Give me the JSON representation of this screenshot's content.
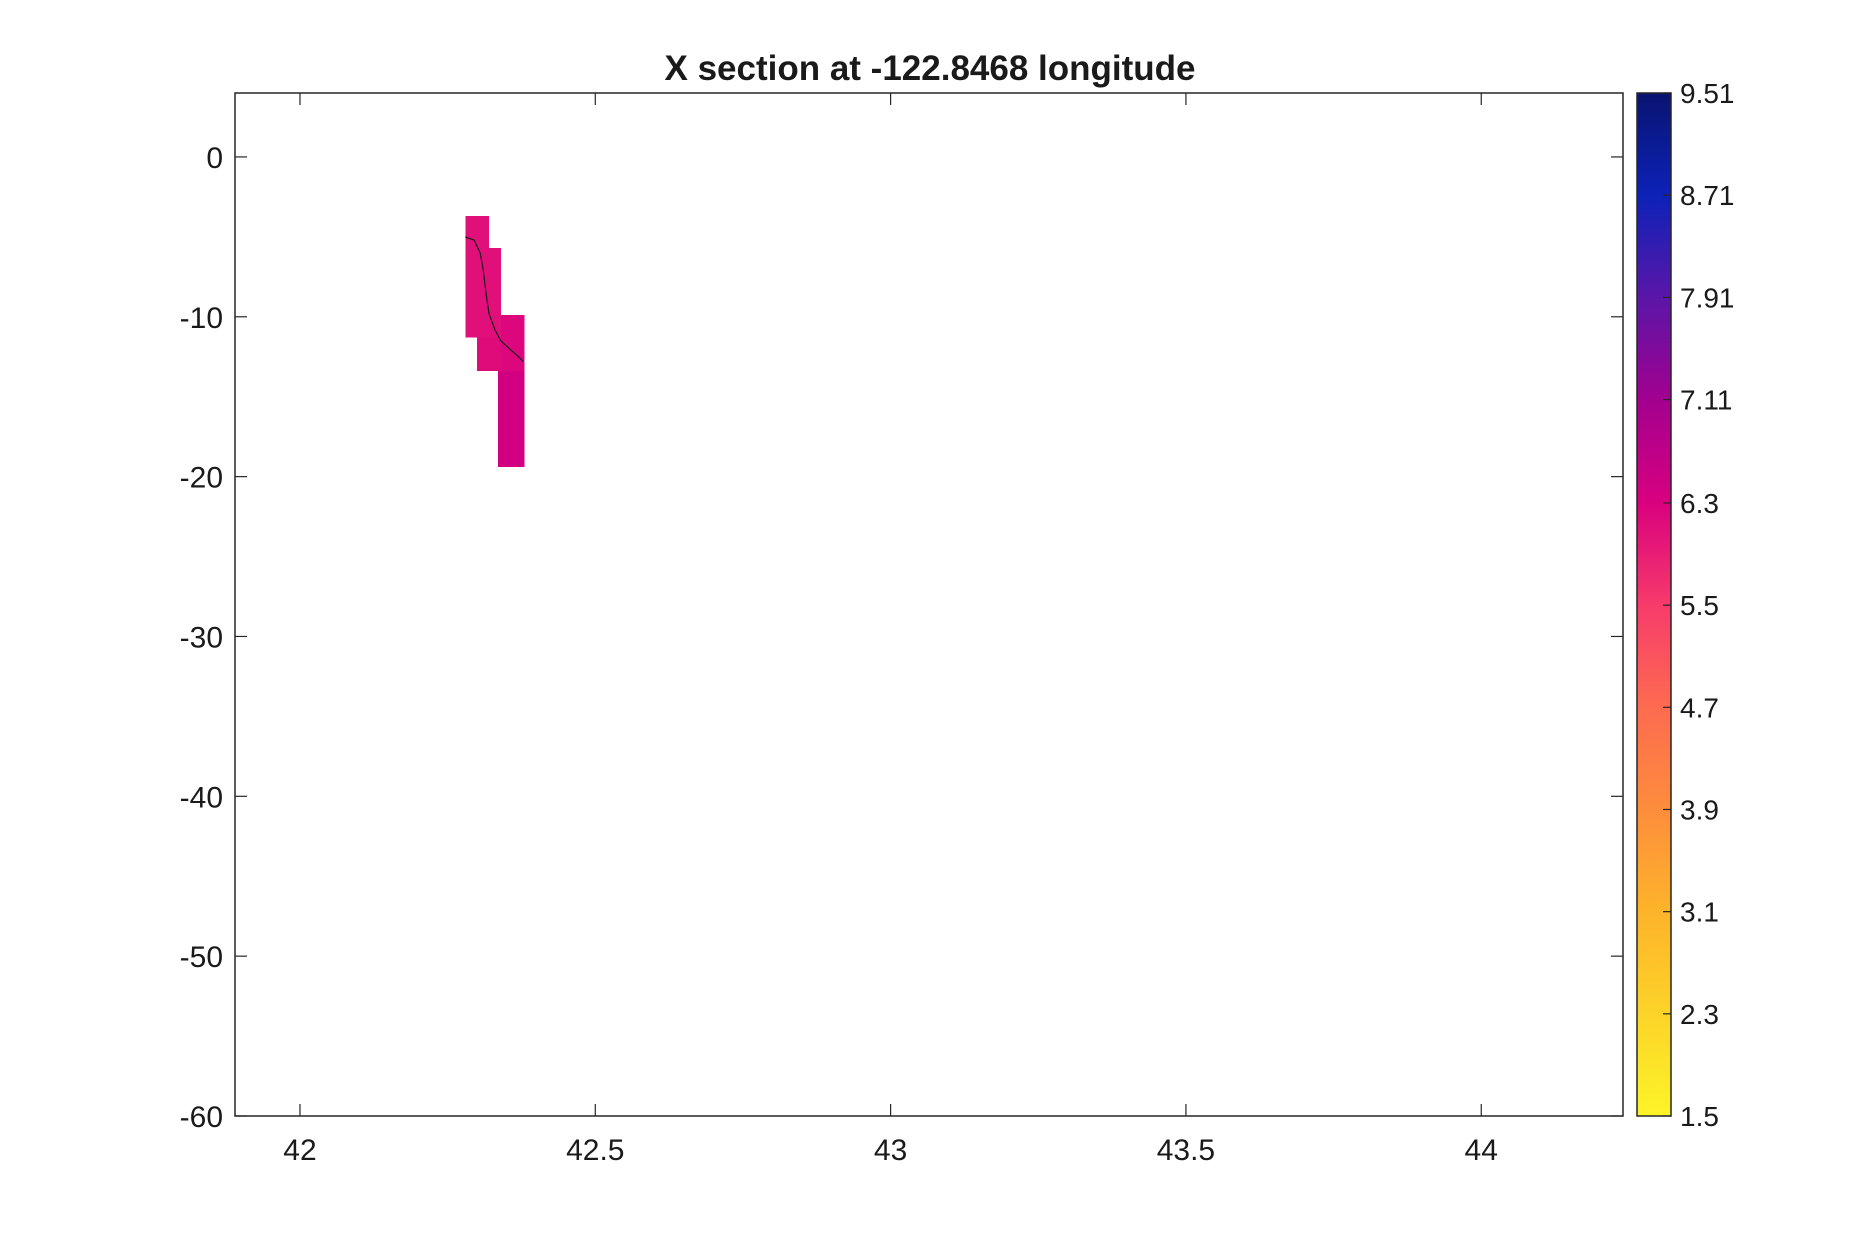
{
  "chart_data": {
    "type": "heatmap",
    "title": "X section at -122.8468 longitude",
    "xlabel": "",
    "ylabel": "",
    "xlim": [
      41.89,
      44.24
    ],
    "ylim": [
      -60,
      4
    ],
    "x_ticks": [
      42,
      42.5,
      43,
      43.5,
      44
    ],
    "x_tick_labels": [
      "42",
      "42.5",
      "43",
      "43.5",
      "44"
    ],
    "y_ticks": [
      0,
      -10,
      -20,
      -30,
      -40,
      -50,
      -60
    ],
    "y_tick_labels": [
      "0",
      "-10",
      "-20",
      "-30",
      "-40",
      "-50",
      "-60"
    ],
    "grid": false,
    "colorbar": {
      "range": [
        1.5,
        9.51
      ],
      "ticks": [
        9.51,
        8.71,
        7.91,
        7.11,
        6.3,
        5.5,
        4.7,
        3.9,
        3.1,
        2.3,
        1.5
      ],
      "tick_labels": [
        "9.51",
        "8.71",
        "7.91",
        "7.11",
        "6.3",
        "5.5",
        "4.7",
        "3.9",
        "3.1",
        "2.3",
        "1.5"
      ],
      "colormap": [
        {
          "value": 1.5,
          "color": "#fcf427"
        },
        {
          "value": 3.1,
          "color": "#fdb32a"
        },
        {
          "value": 3.9,
          "color": "#fd8d3c"
        },
        {
          "value": 4.7,
          "color": "#fd6b50"
        },
        {
          "value": 5.5,
          "color": "#f73b6b"
        },
        {
          "value": 6.3,
          "color": "#d9007f"
        },
        {
          "value": 7.11,
          "color": "#a2008f"
        },
        {
          "value": 7.91,
          "color": "#5a16a8"
        },
        {
          "value": 8.71,
          "color": "#0c22b8"
        },
        {
          "value": 9.51,
          "color": "#0a1470"
        }
      ]
    },
    "cells": [
      {
        "x0": 42.28,
        "x1": 42.32,
        "y0": -11.3,
        "y1": -3.7,
        "value": 6.1
      },
      {
        "x0": 42.3,
        "x1": 42.34,
        "y0": -13.4,
        "y1": -11.3,
        "value": 6.15
      },
      {
        "x0": 42.32,
        "x1": 42.34,
        "y0": -11.3,
        "y1": -5.7,
        "value": 6.1
      },
      {
        "x0": 42.34,
        "x1": 42.38,
        "y0": -13.4,
        "y1": -9.9,
        "value": 6.2
      },
      {
        "x0": 42.335,
        "x1": 42.38,
        "y0": -19.4,
        "y1": -13.4,
        "value": 6.4
      }
    ],
    "line": {
      "x": [
        42.28,
        42.295,
        42.305,
        42.31,
        42.315,
        42.32,
        42.33,
        42.34,
        42.355,
        42.37,
        42.378
      ],
      "y": [
        -5.0,
        -5.2,
        -6.0,
        -7.0,
        -8.5,
        -9.8,
        -10.8,
        -11.5,
        -12.0,
        -12.5,
        -12.8
      ]
    }
  }
}
